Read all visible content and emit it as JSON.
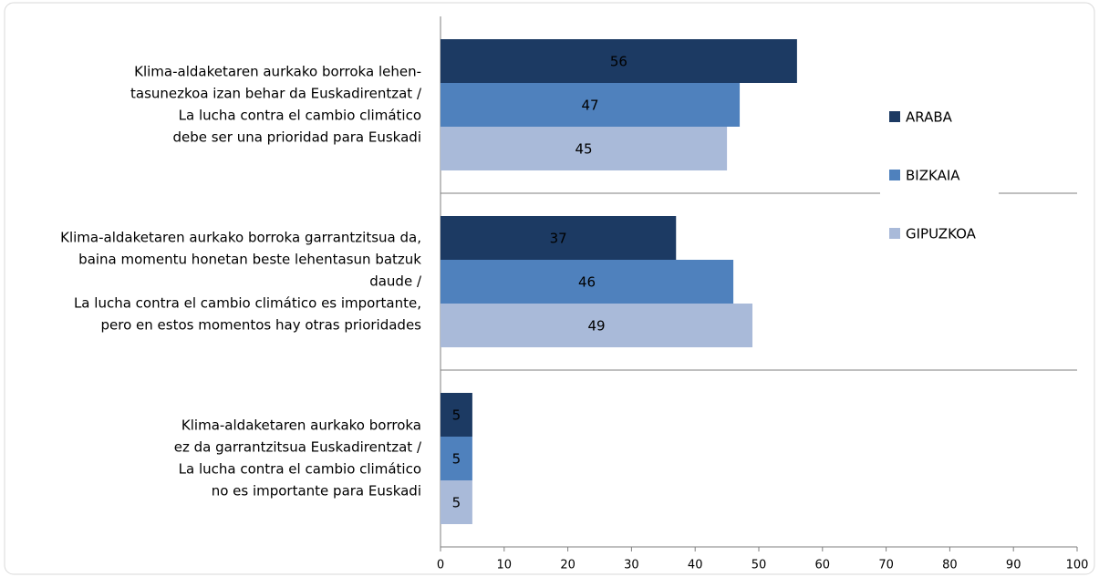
{
  "chart_data": {
    "type": "bar",
    "orientation": "horizontal",
    "categories": [
      [
        "Klima-aldaketaren aurkako borroka lehen-",
        "tasunezkoa izan behar da Euskadirentzat /",
        "La lucha contra el cambio climático",
        "debe ser una prioridad para Euskadi"
      ],
      [
        "Klima-aldaketaren aurkako borroka garrantzitsua da,",
        "baina momentu honetan beste lehentasun batzuk",
        "daude /",
        "La lucha contra el cambio climático es importante,",
        "pero en estos momentos hay otras prioridades"
      ],
      [
        "Klima-aldaketaren aurkako borroka",
        "ez da garrantzitsua Euskadirentzat /",
        "La lucha contra el cambio climático",
        "no es importante para Euskadi"
      ]
    ],
    "series": [
      {
        "name": "ARABA",
        "color": "#1c3a63",
        "values": [
          56,
          37,
          5
        ]
      },
      {
        "name": "BIZKAIA",
        "color": "#4f81bd",
        "values": [
          47,
          46,
          5
        ]
      },
      {
        "name": "GIPUZKOA",
        "color": "#a9bad9",
        "values": [
          45,
          49,
          5
        ]
      }
    ],
    "xlim": [
      0,
      100
    ],
    "xticks": [
      0,
      10,
      20,
      30,
      40,
      50,
      60,
      70,
      80,
      90,
      100
    ],
    "legend": "right"
  }
}
